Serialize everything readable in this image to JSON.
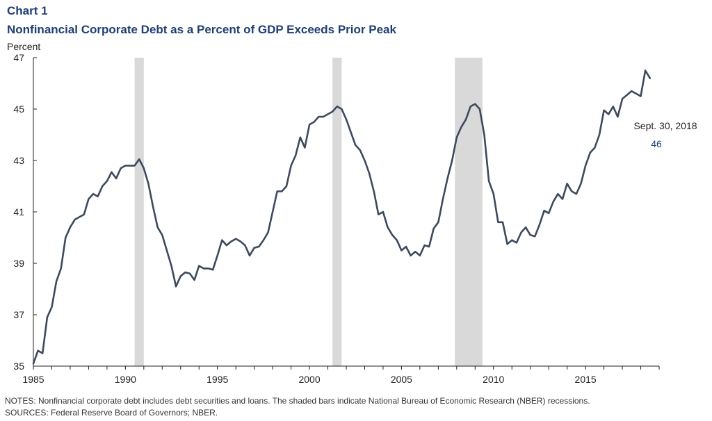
{
  "header": {
    "chart_number": "Chart 1",
    "title": "Nonfinancial Corporate Debt as a Percent of GDP Exceeds Prior Peak"
  },
  "footer": {
    "notes": "NOTES: Nonfinancial corporate debt includes debt securities and loans. The shaded bars indicate National Bureau of Economic Research (NBER) recessions.",
    "sources": "SOURCES: Federal Reserve Board of Governors; NBER."
  },
  "colors": {
    "line": "#3c4a5c",
    "recession": "#d9d9d9",
    "title": "#1f3f73",
    "axis": "#231f20"
  },
  "chart_data": {
    "type": "line",
    "title": "Nonfinancial Corporate Debt as a Percent of GDP Exceeds Prior Peak",
    "ylabel": "Percent",
    "xlabel": "",
    "xlim": [
      1985,
      2019
    ],
    "ylim": [
      35,
      47
    ],
    "x_ticks": [
      1985,
      1990,
      1995,
      2000,
      2005,
      2010,
      2015
    ],
    "y_ticks": [
      35,
      37,
      39,
      41,
      43,
      45,
      47
    ],
    "grid": false,
    "recessions": [
      [
        1990.5,
        1991.0
      ],
      [
        2001.25,
        2001.75
      ],
      [
        2007.9,
        2009.4
      ]
    ],
    "annotation": {
      "label": "Sept. 30, 2018",
      "value": "46"
    },
    "series": [
      {
        "x": [
          1985.0,
          1985.25,
          1985.5,
          1985.75,
          1986.0,
          1986.25,
          1986.5,
          1986.75,
          1987.0,
          1987.25,
          1987.5,
          1987.75,
          1988.0,
          1988.25,
          1988.5,
          1988.75,
          1989.0,
          1989.25,
          1989.5,
          1989.75,
          1990.0,
          1990.25,
          1990.5,
          1990.75,
          1991.0,
          1991.25,
          1991.5,
          1991.75,
          1992.0,
          1992.25,
          1992.5,
          1992.75,
          1993.0,
          1993.25,
          1993.5,
          1993.75,
          1994.0,
          1994.25,
          1994.5,
          1994.75,
          1995.0,
          1995.25,
          1995.5,
          1995.75,
          1996.0,
          1996.25,
          1996.5,
          1996.75,
          1997.0,
          1997.25,
          1997.5,
          1997.75,
          1998.0,
          1998.25,
          1998.5,
          1998.75,
          1999.0,
          1999.25,
          1999.5,
          1999.75,
          2000.0,
          2000.25,
          2000.5,
          2000.75,
          2001.0,
          2001.25,
          2001.5,
          2001.75,
          2002.0,
          2002.25,
          2002.5,
          2002.75,
          2003.0,
          2003.25,
          2003.5,
          2003.75,
          2004.0,
          2004.25,
          2004.5,
          2004.75,
          2005.0,
          2005.25,
          2005.5,
          2005.75,
          2006.0,
          2006.25,
          2006.5,
          2006.75,
          2007.0,
          2007.25,
          2007.5,
          2007.75,
          2008.0,
          2008.25,
          2008.5,
          2008.75,
          2009.0,
          2009.25,
          2009.5,
          2009.75,
          2010.0,
          2010.25,
          2010.5,
          2010.75,
          2011.0,
          2011.25,
          2011.5,
          2011.75,
          2012.0,
          2012.25,
          2012.5,
          2012.75,
          2013.0,
          2013.25,
          2013.5,
          2013.75,
          2014.0,
          2014.25,
          2014.5,
          2014.75,
          2015.0,
          2015.25,
          2015.5,
          2015.75,
          2016.0,
          2016.25,
          2016.5,
          2016.75,
          2017.0,
          2017.25,
          2017.5,
          2017.75,
          2018.0,
          2018.25,
          2018.5
        ],
        "values": [
          35.1,
          35.6,
          35.5,
          36.9,
          37.3,
          38.3,
          38.8,
          40.0,
          40.4,
          40.7,
          40.8,
          40.9,
          41.5,
          41.7,
          41.6,
          42.0,
          42.2,
          42.55,
          42.3,
          42.7,
          42.8,
          42.8,
          42.8,
          43.05,
          42.7,
          42.1,
          41.2,
          40.4,
          40.1,
          39.5,
          38.9,
          38.1,
          38.5,
          38.65,
          38.6,
          38.35,
          38.9,
          38.8,
          38.8,
          38.75,
          39.3,
          39.9,
          39.7,
          39.85,
          39.95,
          39.85,
          39.7,
          39.3,
          39.6,
          39.65,
          39.9,
          40.2,
          41.0,
          41.8,
          41.8,
          42.0,
          42.8,
          43.2,
          43.9,
          43.5,
          44.4,
          44.5,
          44.7,
          44.7,
          44.8,
          44.9,
          45.1,
          45.0,
          44.6,
          44.1,
          43.6,
          43.4,
          43.0,
          42.5,
          41.8,
          40.9,
          41.0,
          40.4,
          40.1,
          39.9,
          39.5,
          39.65,
          39.3,
          39.45,
          39.3,
          39.7,
          39.65,
          40.35,
          40.6,
          41.5,
          42.3,
          43.0,
          43.9,
          44.3,
          44.6,
          45.1,
          45.2,
          45.0,
          44.0,
          42.2,
          41.7,
          40.6,
          40.6,
          39.75,
          39.9,
          39.8,
          40.2,
          40.4,
          40.1,
          40.05,
          40.5,
          41.05,
          40.95,
          41.4,
          41.7,
          41.5,
          42.1,
          41.8,
          41.7,
          42.1,
          42.8,
          43.3,
          43.5,
          44.0,
          44.95,
          44.8,
          45.1,
          44.7,
          45.4,
          45.55,
          45.7,
          45.6,
          45.5,
          46.5,
          46.2
        ]
      }
    ]
  }
}
